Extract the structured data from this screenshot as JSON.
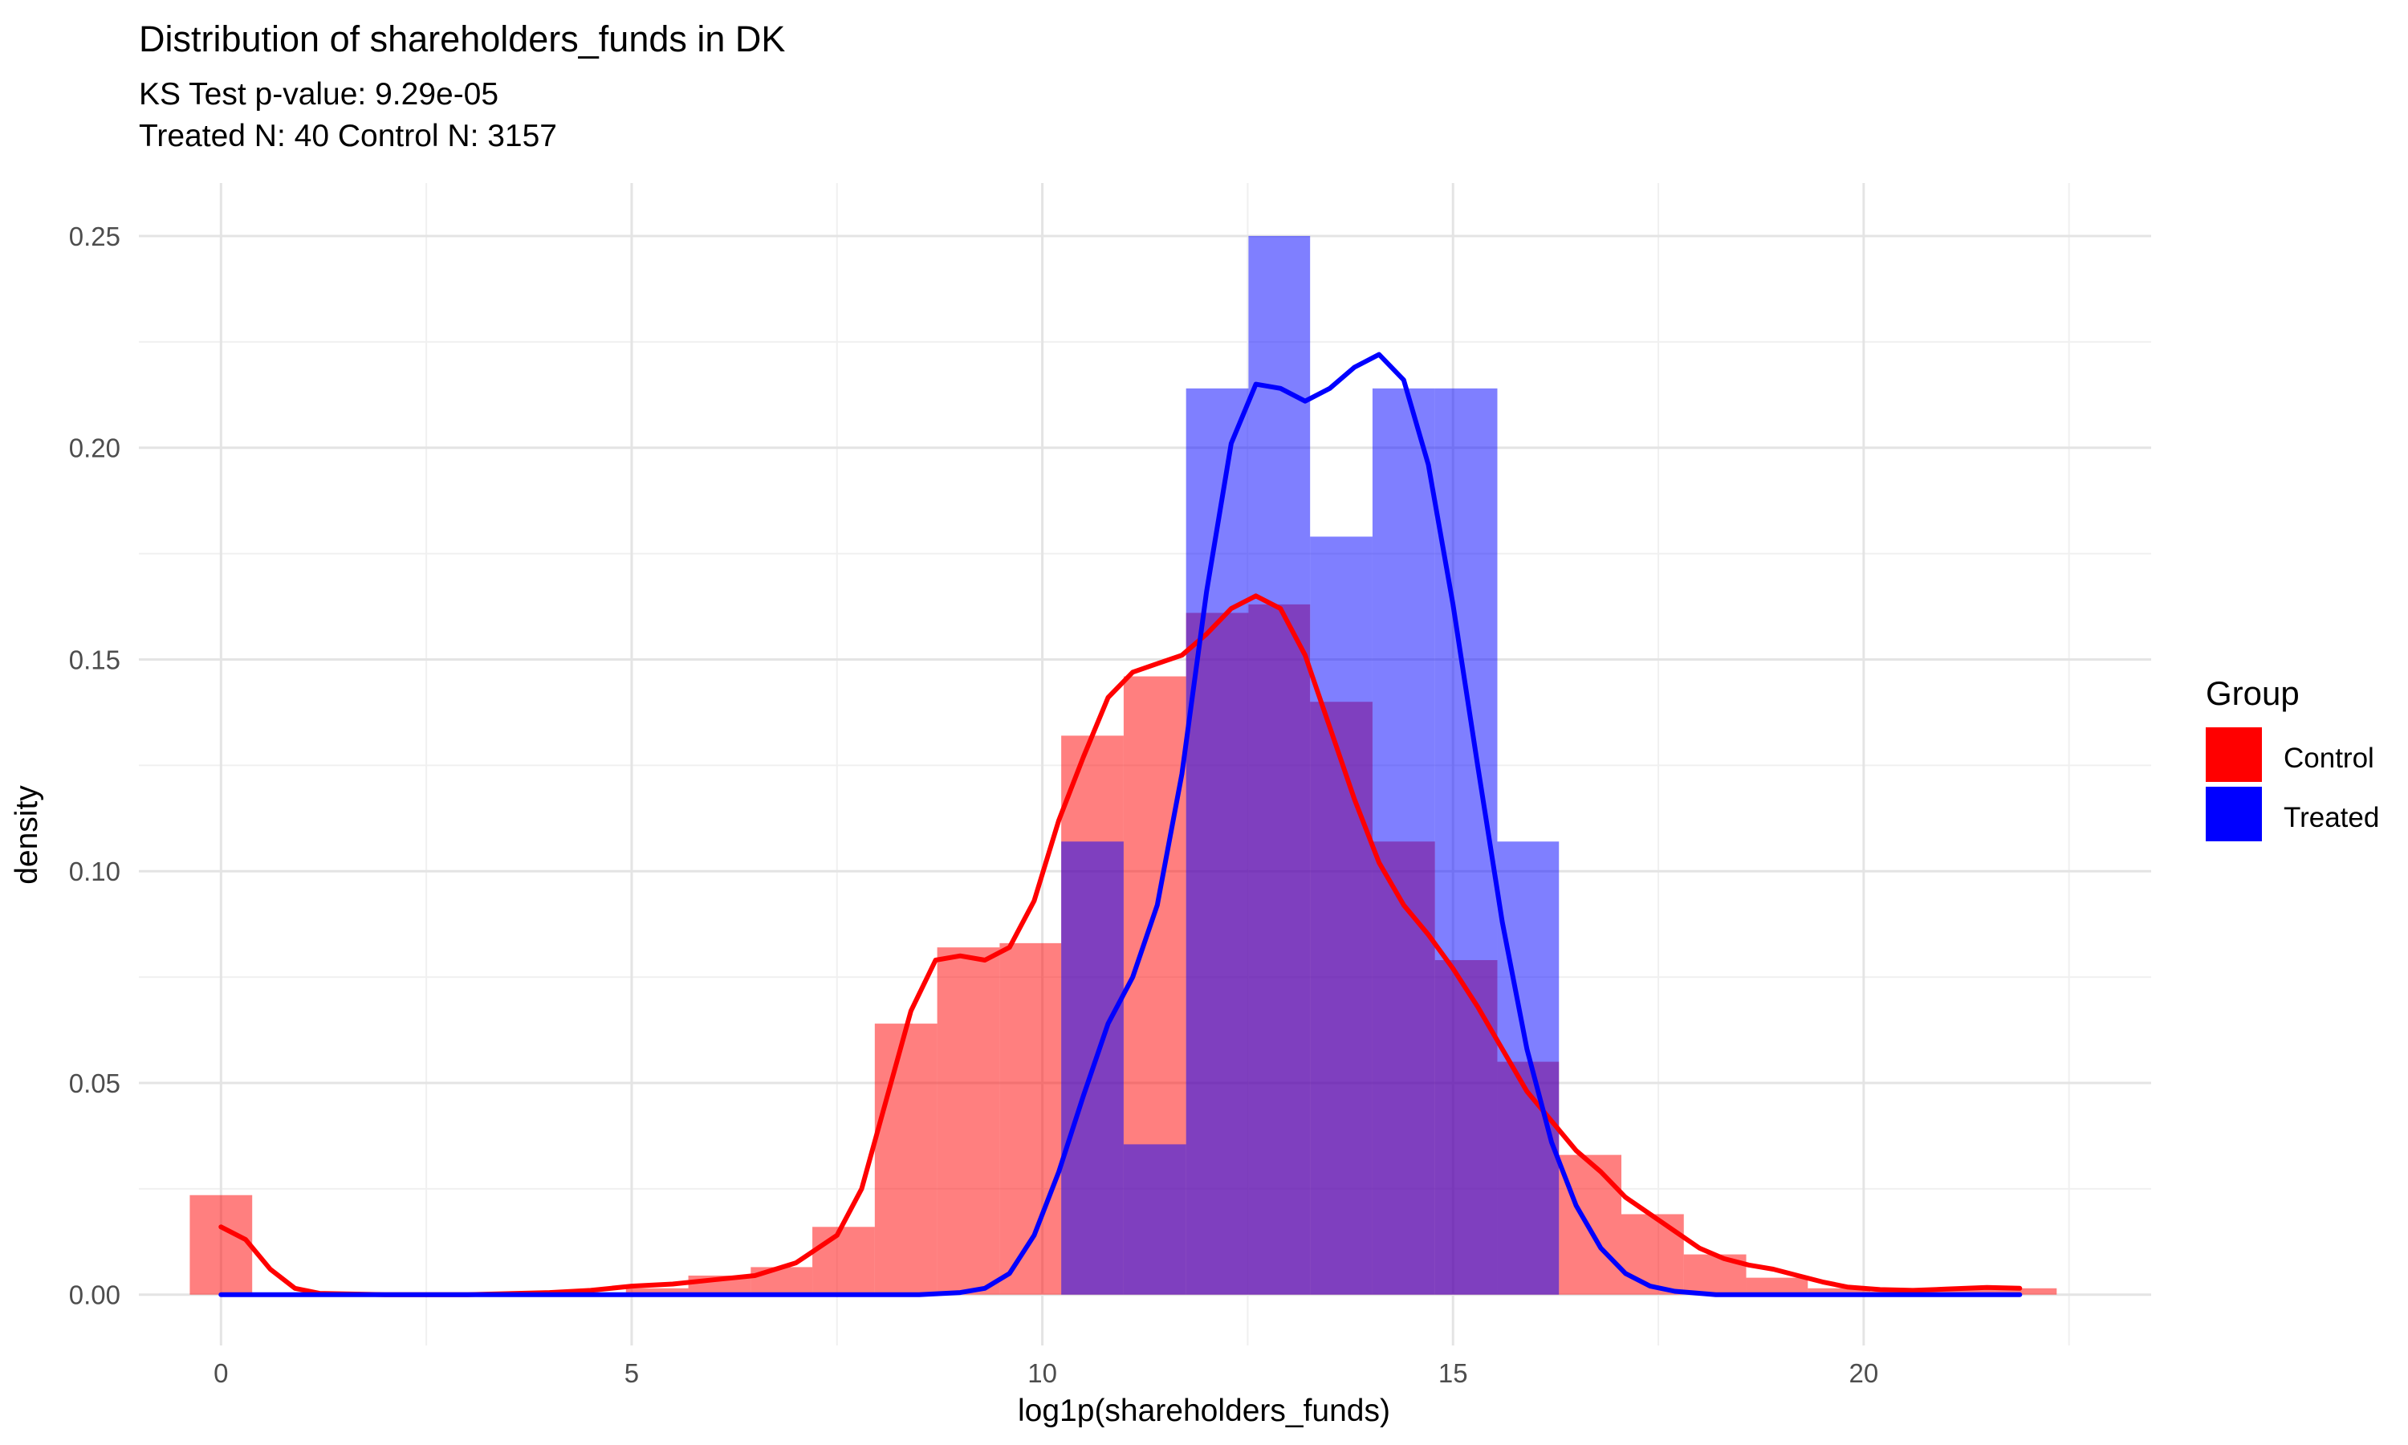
{
  "chart_data": {
    "type": "histogram",
    "title": "Distribution of shareholders_funds in DK",
    "subtitle_lines": [
      "KS Test p-value: 9.29e-05",
      "Treated N: 40 Control N: 3157"
    ],
    "xlabel": "log1p(shareholders_funds)",
    "ylabel": "density",
    "xlim": [
      -1.0,
      23.5
    ],
    "ylim": [
      -0.012,
      0.2625
    ],
    "x_ticks": [
      0,
      5,
      10,
      15,
      20
    ],
    "x_tick_labels": [
      "0",
      "5",
      "10",
      "15",
      "20"
    ],
    "y_ticks": [
      0.0,
      0.05,
      0.1,
      0.15,
      0.2,
      0.25
    ],
    "y_tick_labels": [
      "0.00",
      "0.05",
      "0.10",
      "0.15",
      "0.20",
      "0.25"
    ],
    "grid": true,
    "legend": {
      "title": "Group",
      "placement": "right",
      "entries": [
        {
          "name": "Control",
          "color": "#ff0000"
        },
        {
          "name": "Treated",
          "color": "#0000ff"
        }
      ]
    },
    "histograms": [
      {
        "name": "Control",
        "color": "#ff0000",
        "bins": [
          [
            -0.38,
            0.38,
            0.0235
          ],
          [
            4.93,
            5.69,
            0.0015
          ],
          [
            5.69,
            6.45,
            0.0045
          ],
          [
            6.45,
            7.2,
            0.0065
          ],
          [
            7.2,
            7.96,
            0.016
          ],
          [
            7.96,
            8.72,
            0.064
          ],
          [
            8.72,
            9.48,
            0.082
          ],
          [
            9.48,
            10.23,
            0.083
          ],
          [
            10.23,
            10.99,
            0.132
          ],
          [
            10.99,
            11.75,
            0.146
          ],
          [
            11.75,
            12.51,
            0.161
          ],
          [
            12.51,
            13.26,
            0.163
          ],
          [
            13.26,
            14.02,
            0.14
          ],
          [
            14.02,
            14.78,
            0.107
          ],
          [
            14.78,
            15.54,
            0.079
          ],
          [
            15.54,
            16.29,
            0.055
          ],
          [
            16.29,
            17.05,
            0.033
          ],
          [
            17.05,
            17.81,
            0.019
          ],
          [
            17.81,
            18.57,
            0.0095
          ],
          [
            18.57,
            19.32,
            0.004
          ],
          [
            19.32,
            20.08,
            0.0015
          ],
          [
            20.08,
            20.84,
            0.0007
          ],
          [
            20.84,
            21.6,
            0.0015
          ],
          [
            21.6,
            22.35,
            0.0015
          ]
        ]
      },
      {
        "name": "Treated",
        "color": "#0000ff",
        "bins": [
          [
            10.23,
            10.99,
            0.107
          ],
          [
            10.99,
            11.75,
            0.0355
          ],
          [
            11.75,
            12.51,
            0.214
          ],
          [
            12.51,
            13.26,
            0.25
          ],
          [
            13.26,
            14.02,
            0.179
          ],
          [
            14.02,
            14.78,
            0.214
          ],
          [
            14.78,
            15.54,
            0.214
          ],
          [
            15.54,
            16.29,
            0.107
          ],
          [
            16.29,
            17.05,
            0.0
          ],
          [
            17.05,
            17.81,
            0.0
          ]
        ]
      }
    ],
    "densities": [
      {
        "name": "Control",
        "color": "#ff0000",
        "points": [
          [
            0,
            0.016
          ],
          [
            0.3,
            0.013
          ],
          [
            0.6,
            0.006
          ],
          [
            0.9,
            0.0015
          ],
          [
            1.2,
            0.0003
          ],
          [
            2,
            0.0
          ],
          [
            3,
            0.0
          ],
          [
            4,
            0.0005
          ],
          [
            4.5,
            0.001
          ],
          [
            5,
            0.002
          ],
          [
            5.5,
            0.0025
          ],
          [
            6,
            0.0035
          ],
          [
            6.5,
            0.0045
          ],
          [
            7,
            0.0075
          ],
          [
            7.5,
            0.014
          ],
          [
            7.8,
            0.025
          ],
          [
            8.1,
            0.046
          ],
          [
            8.4,
            0.067
          ],
          [
            8.7,
            0.079
          ],
          [
            9.0,
            0.08
          ],
          [
            9.3,
            0.079
          ],
          [
            9.6,
            0.082
          ],
          [
            9.9,
            0.093
          ],
          [
            10.2,
            0.112
          ],
          [
            10.5,
            0.127
          ],
          [
            10.8,
            0.141
          ],
          [
            11.1,
            0.147
          ],
          [
            11.4,
            0.149
          ],
          [
            11.7,
            0.151
          ],
          [
            12.0,
            0.156
          ],
          [
            12.3,
            0.162
          ],
          [
            12.6,
            0.165
          ],
          [
            12.9,
            0.162
          ],
          [
            13.2,
            0.151
          ],
          [
            13.5,
            0.134
          ],
          [
            13.8,
            0.117
          ],
          [
            14.1,
            0.102
          ],
          [
            14.4,
            0.092
          ],
          [
            14.7,
            0.085
          ],
          [
            15.0,
            0.077
          ],
          [
            15.3,
            0.068
          ],
          [
            15.6,
            0.058
          ],
          [
            15.9,
            0.048
          ],
          [
            16.2,
            0.041
          ],
          [
            16.5,
            0.034
          ],
          [
            16.8,
            0.029
          ],
          [
            17.1,
            0.023
          ],
          [
            17.4,
            0.019
          ],
          [
            17.7,
            0.015
          ],
          [
            18.0,
            0.011
          ],
          [
            18.3,
            0.0085
          ],
          [
            18.6,
            0.007
          ],
          [
            18.9,
            0.006
          ],
          [
            19.2,
            0.0045
          ],
          [
            19.5,
            0.003
          ],
          [
            19.8,
            0.0018
          ],
          [
            20.2,
            0.0012
          ],
          [
            20.6,
            0.001
          ],
          [
            21.0,
            0.0013
          ],
          [
            21.5,
            0.0017
          ],
          [
            21.9,
            0.0015
          ]
        ]
      },
      {
        "name": "Treated",
        "color": "#0000ff",
        "points": [
          [
            0,
            0.0
          ],
          [
            3,
            0.0
          ],
          [
            6,
            0.0
          ],
          [
            8.5,
            0.0
          ],
          [
            9.0,
            0.0005
          ],
          [
            9.3,
            0.0015
          ],
          [
            9.6,
            0.005
          ],
          [
            9.9,
            0.014
          ],
          [
            10.2,
            0.029
          ],
          [
            10.5,
            0.047
          ],
          [
            10.8,
            0.064
          ],
          [
            11.1,
            0.075
          ],
          [
            11.4,
            0.092
          ],
          [
            11.7,
            0.123
          ],
          [
            12.0,
            0.166
          ],
          [
            12.3,
            0.201
          ],
          [
            12.6,
            0.215
          ],
          [
            12.9,
            0.214
          ],
          [
            13.2,
            0.211
          ],
          [
            13.5,
            0.214
          ],
          [
            13.8,
            0.219
          ],
          [
            14.1,
            0.222
          ],
          [
            14.4,
            0.216
          ],
          [
            14.7,
            0.196
          ],
          [
            15.0,
            0.163
          ],
          [
            15.3,
            0.125
          ],
          [
            15.6,
            0.088
          ],
          [
            15.9,
            0.058
          ],
          [
            16.2,
            0.036
          ],
          [
            16.5,
            0.021
          ],
          [
            16.8,
            0.011
          ],
          [
            17.1,
            0.005
          ],
          [
            17.4,
            0.002
          ],
          [
            17.7,
            0.0008
          ],
          [
            18.2,
            0.0
          ],
          [
            20,
            0.0
          ],
          [
            21.9,
            0.0
          ]
        ]
      }
    ]
  }
}
